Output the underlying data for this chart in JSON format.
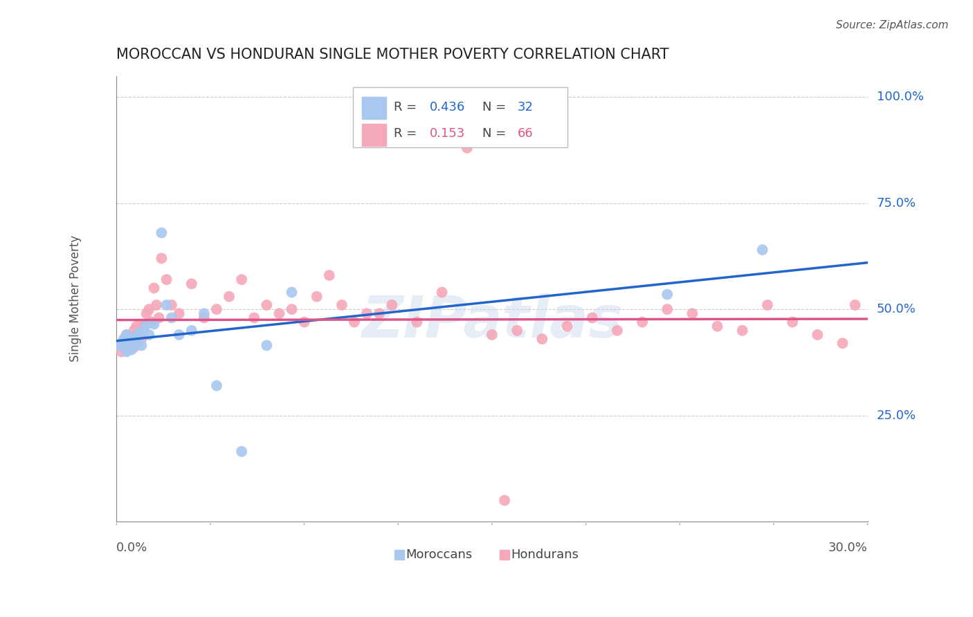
{
  "title": "MOROCCAN VS HONDURAN SINGLE MOTHER POVERTY CORRELATION CHART",
  "source": "Source: ZipAtlas.com",
  "ylabel": "Single Mother Poverty",
  "y_tick_labels": [
    "100.0%",
    "75.0%",
    "50.0%",
    "25.0%"
  ],
  "y_tick_values": [
    1.0,
    0.75,
    0.5,
    0.25
  ],
  "x_range": [
    0.0,
    0.3
  ],
  "y_range": [
    0.0,
    1.05
  ],
  "watermark": "ZIPatlas",
  "moroccan_color": "#a8c8f0",
  "honduran_color": "#f5a8b8",
  "moroccan_line_color": "#2266cc",
  "honduran_line_color": "#dd5588",
  "moroccan_R": 0.436,
  "moroccan_N": 32,
  "honduran_R": 0.153,
  "honduran_N": 66,
  "moroccan_x": [
    0.001,
    0.002,
    0.003,
    0.003,
    0.004,
    0.004,
    0.005,
    0.005,
    0.006,
    0.006,
    0.007,
    0.007,
    0.008,
    0.008,
    0.009,
    0.01,
    0.011,
    0.012,
    0.013,
    0.015,
    0.018,
    0.02,
    0.022,
    0.025,
    0.03,
    0.035,
    0.04,
    0.05,
    0.06,
    0.07,
    0.22,
    0.258
  ],
  "moroccan_y": [
    0.415,
    0.415,
    0.42,
    0.43,
    0.4,
    0.44,
    0.41,
    0.435,
    0.42,
    0.405,
    0.425,
    0.415,
    0.43,
    0.42,
    0.445,
    0.415,
    0.45,
    0.465,
    0.44,
    0.465,
    0.68,
    0.51,
    0.48,
    0.44,
    0.45,
    0.49,
    0.32,
    0.165,
    0.415,
    0.54,
    0.535,
    0.64
  ],
  "honduran_x": [
    0.001,
    0.002,
    0.002,
    0.003,
    0.003,
    0.004,
    0.004,
    0.005,
    0.005,
    0.006,
    0.006,
    0.007,
    0.007,
    0.008,
    0.008,
    0.009,
    0.01,
    0.01,
    0.011,
    0.012,
    0.013,
    0.014,
    0.015,
    0.016,
    0.017,
    0.018,
    0.02,
    0.022,
    0.025,
    0.03,
    0.035,
    0.04,
    0.045,
    0.05,
    0.055,
    0.06,
    0.065,
    0.07,
    0.075,
    0.08,
    0.085,
    0.09,
    0.095,
    0.1,
    0.105,
    0.11,
    0.12,
    0.13,
    0.14,
    0.15,
    0.155,
    0.16,
    0.17,
    0.18,
    0.19,
    0.2,
    0.21,
    0.22,
    0.23,
    0.24,
    0.25,
    0.26,
    0.27,
    0.28,
    0.29,
    0.295
  ],
  "honduran_y": [
    0.415,
    0.42,
    0.4,
    0.43,
    0.41,
    0.405,
    0.44,
    0.415,
    0.43,
    0.42,
    0.435,
    0.41,
    0.45,
    0.42,
    0.46,
    0.44,
    0.46,
    0.43,
    0.465,
    0.49,
    0.5,
    0.47,
    0.55,
    0.51,
    0.48,
    0.62,
    0.57,
    0.51,
    0.49,
    0.56,
    0.48,
    0.5,
    0.53,
    0.57,
    0.48,
    0.51,
    0.49,
    0.5,
    0.47,
    0.53,
    0.58,
    0.51,
    0.47,
    0.49,
    0.49,
    0.51,
    0.47,
    0.54,
    0.88,
    0.44,
    0.05,
    0.45,
    0.43,
    0.46,
    0.48,
    0.45,
    0.47,
    0.5,
    0.49,
    0.46,
    0.45,
    0.51,
    0.47,
    0.44,
    0.42,
    0.51
  ]
}
